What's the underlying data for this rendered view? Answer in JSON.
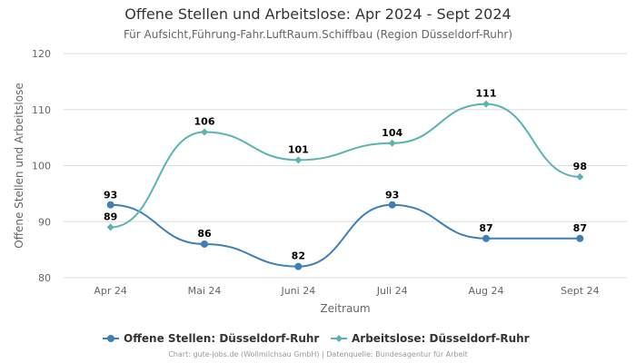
{
  "chart_data": {
    "type": "line",
    "title": "Offene Stellen und Arbeitslose: Apr 2024 - Sept 2024",
    "subtitle": "Für Aufsicht,Führung-Fahr.LuftRaum.Schiffbau (Region Düsseldorf-Ruhr)",
    "xlabel": "Zeitraum",
    "ylabel": "Offene Stellen und Arbeitslose",
    "categories": [
      "Apr 24",
      "Mai 24",
      "Juni 24",
      "Juli 24",
      "Aug 24",
      "Sept 24"
    ],
    "ylim": [
      80,
      120
    ],
    "yticks": [
      80,
      90,
      100,
      110,
      120
    ],
    "grid": true,
    "legend_position": "bottom",
    "series": [
      {
        "name": "Offene Stellen: Düsseldorf-Ruhr",
        "values": [
          93,
          86,
          82,
          93,
          87,
          87
        ],
        "color": "#3d7fb6",
        "marker": "circle"
      },
      {
        "name": "Arbeitslose: Düsseldorf-Ruhr",
        "values": [
          89,
          106,
          101,
          104,
          111,
          98
        ],
        "color": "#5ab4b0",
        "marker": "diamond"
      }
    ]
  },
  "footer": "Chart: gute-jobs.de (Wollmilchsau GmbH) | Datenquelle: Bundesagentur für Arbeit"
}
